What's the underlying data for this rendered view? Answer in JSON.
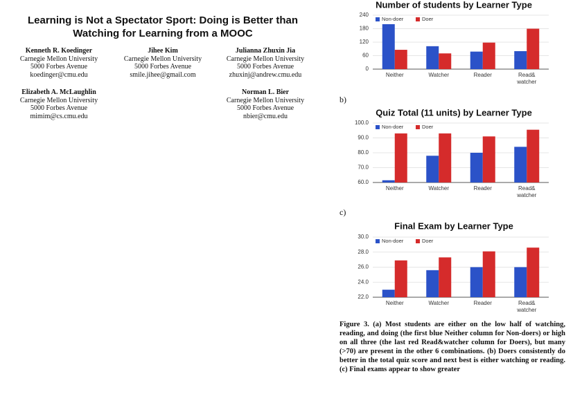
{
  "title": "Learning is Not a Spectator Sport: Doing is Better than Watching for Learning from a MOOC",
  "authors": [
    {
      "name": "Kenneth R. Koedinger",
      "affiliation": "Carnegie Mellon University",
      "address": "5000 Forbes Avenue",
      "email": "koedinger@cmu.edu"
    },
    {
      "name": "Jihee Kim",
      "affiliation": "Carnegie Mellon University",
      "address": "5000 Forbes Avenue",
      "email": "smile.jihee@gmail.com"
    },
    {
      "name": "Julianna Zhuxin Jia",
      "affiliation": "Carnegie Mellon University",
      "address": "5000 Forbes Avenue",
      "email": "zhuxinj@andrew.cmu.edu"
    },
    {
      "name": "Elizabeth A. McLaughlin",
      "affiliation": "Carnegie Mellon University",
      "address": "5000 Forbes Avenue",
      "email": "mimim@cs.cmu.edu"
    },
    {
      "name": "Norman L. Bier",
      "affiliation": "Carnegie Mellon University",
      "address": "5000 Forbes Avenue",
      "email": "nbier@cmu.edu"
    }
  ],
  "panel_labels": [
    "b)",
    "c)"
  ],
  "chart_data": [
    {
      "type": "bar",
      "title": "Number of students by Learner Type",
      "categories": [
        "Neither",
        "Watcher",
        "Reader",
        "Read& watcher"
      ],
      "series": [
        {
          "name": "Non-doer",
          "color": "#2b52c8",
          "values": [
            200,
            102,
            78,
            80
          ]
        },
        {
          "name": "Doer",
          "color": "#d52b2b",
          "values": [
            86,
            70,
            118,
            180
          ]
        }
      ],
      "ylim": [
        0,
        240
      ],
      "yticks": [
        0,
        60,
        120,
        180,
        240
      ],
      "grid": true,
      "legend": "top-left"
    },
    {
      "type": "bar",
      "title": "Quiz Total (11 units) by Learner Type",
      "categories": [
        "Neither",
        "Watcher",
        "Reader",
        "Read& watcher"
      ],
      "series": [
        {
          "name": "Non-doer",
          "color": "#2b52c8",
          "values": [
            61.5,
            78,
            80,
            84
          ]
        },
        {
          "name": "Doer",
          "color": "#d52b2b",
          "values": [
            93,
            93,
            91,
            95.5
          ]
        }
      ],
      "ylim": [
        60,
        100
      ],
      "yticks": [
        {
          "value": 60,
          "label": "60.0"
        },
        {
          "value": 70,
          "label": "70.0"
        },
        {
          "value": 80,
          "label": "80.0"
        },
        {
          "value": 90,
          "label": "90.0"
        },
        {
          "value": 100,
          "label": "100.0"
        }
      ],
      "grid": true,
      "legend": "top-left"
    },
    {
      "type": "bar",
      "title": "Final Exam by Learner Type",
      "categories": [
        "Neither",
        "Watcher",
        "Reader",
        "Read& watcher"
      ],
      "series": [
        {
          "name": "Non-doer",
          "color": "#2b52c8",
          "values": [
            23,
            25.6,
            26,
            26
          ]
        },
        {
          "name": "Doer",
          "color": "#d52b2b",
          "values": [
            26.9,
            27.3,
            28.1,
            28.6
          ]
        }
      ],
      "ylim": [
        22,
        30
      ],
      "yticks": [
        {
          "value": 22,
          "label": "22.0"
        },
        {
          "value": 24,
          "label": "24.0"
        },
        {
          "value": 26,
          "label": "26.0"
        },
        {
          "value": 28,
          "label": "28.0"
        },
        {
          "value": 30,
          "label": "30.0"
        }
      ],
      "grid": true,
      "legend": "top-left"
    }
  ],
  "caption": "Figure 3. (a) Most students are either on the low half of watching, reading, and doing (the first blue Neither column for Non-doers) or high on all three (the last red Read&watcher column for Doers), but many (>70) are present in the other 6 combinations. (b) Doers consistently do better in the total quiz score and next best is either watching or reading. (c) Final exams appear to show greater"
}
